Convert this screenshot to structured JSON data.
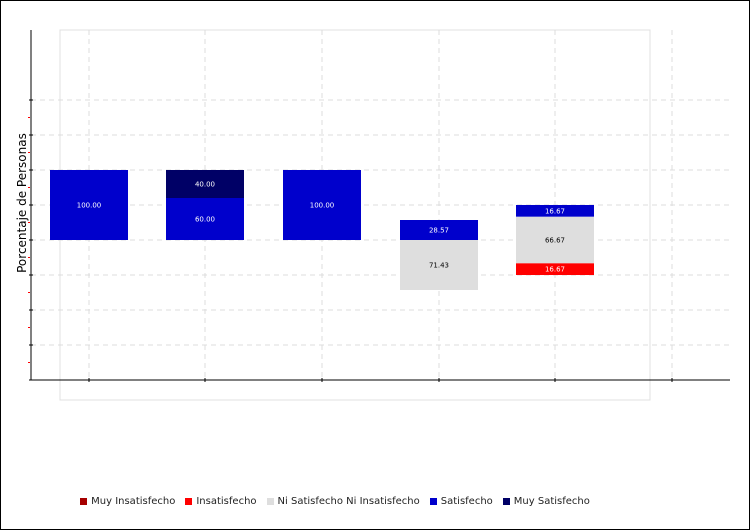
{
  "chart_data": {
    "type": "bar",
    "stacked": "diverging",
    "title": "",
    "xlabel": "",
    "ylabel": "Porcentaje de Personas",
    "ylim": [
      -200,
      200
    ],
    "grid": true,
    "legend_position": "bottom",
    "categories": [
      "",
      "",
      "",
      "",
      ""
    ],
    "series": [
      {
        "name": "Muy Insatisfecho",
        "color": "#a60000",
        "side": "negative",
        "values": [
          0,
          0,
          0,
          0,
          0
        ]
      },
      {
        "name": "Insatisfecho",
        "color": "#ff0000",
        "side": "negative",
        "values": [
          0,
          0,
          0,
          0,
          16.67
        ]
      },
      {
        "name": "Ni Satisfecho Ni Insatisfecho",
        "color": "#dedede",
        "side": "neutral",
        "values": [
          0,
          0,
          0,
          71.43,
          66.67
        ]
      },
      {
        "name": "Satisfecho",
        "color": "#0000cc",
        "side": "positive",
        "values": [
          100.0,
          60.0,
          100.0,
          28.57,
          16.67
        ]
      },
      {
        "name": "Muy Satisfecho",
        "color": "#000066",
        "side": "positive",
        "values": [
          0,
          40.0,
          0,
          0,
          0
        ]
      }
    ],
    "data_labels": [
      [
        "",
        "",
        "",
        "",
        ""
      ],
      [
        "",
        "",
        "",
        "",
        "16.67"
      ],
      [
        "",
        "",
        "",
        "71.43",
        "66.67"
      ],
      [
        "100.00",
        "60.00",
        "100.00",
        "28.57",
        "16.67"
      ],
      [
        "",
        "40.00",
        "",
        "",
        ""
      ]
    ]
  }
}
